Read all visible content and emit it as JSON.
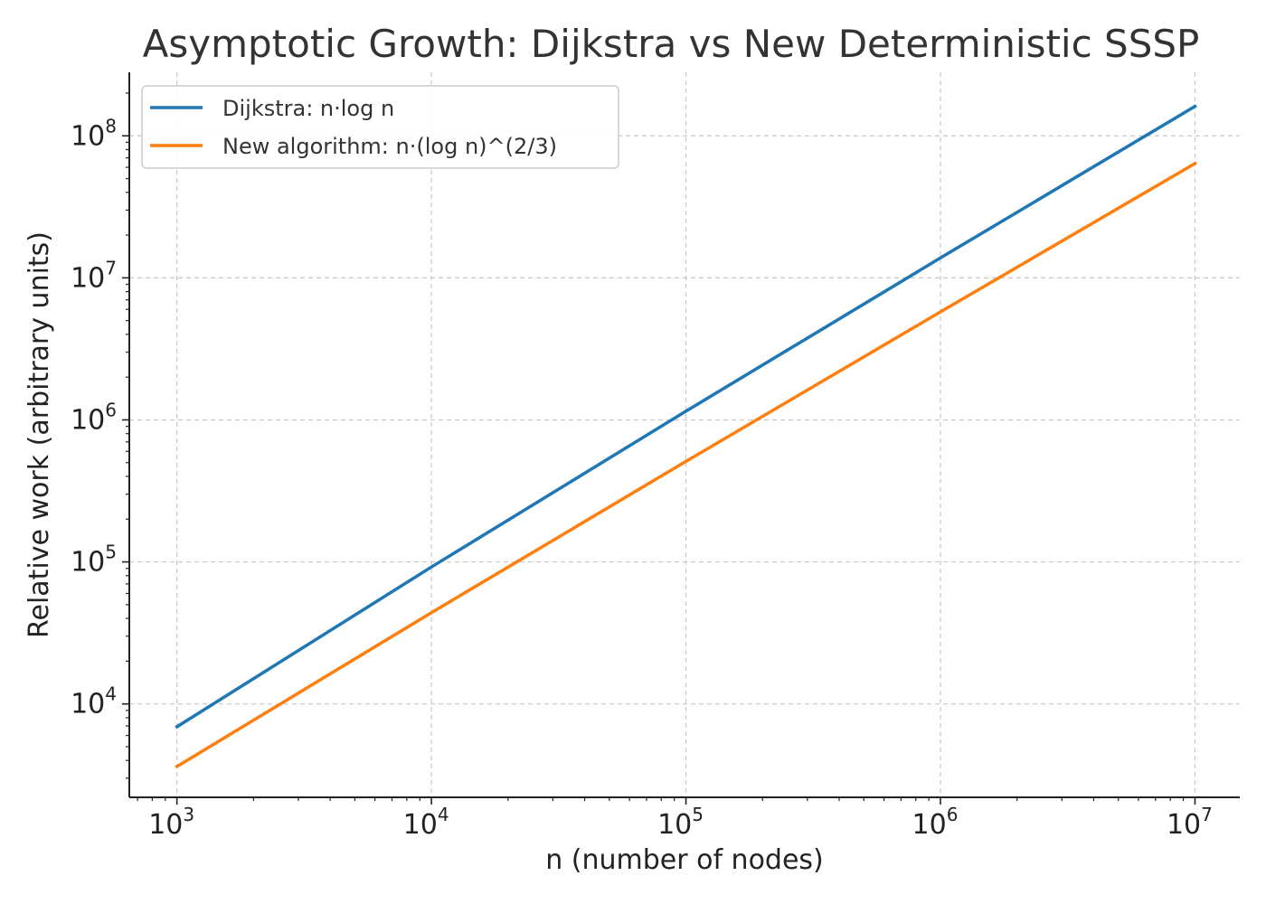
{
  "chart_data": {
    "type": "line",
    "title": "Asymptotic Growth: Dijkstra vs New Deterministic SSSP",
    "xlabel": "n (number of nodes)",
    "ylabel": "Relative work (arbitrary units)",
    "xscale": "log",
    "yscale": "log",
    "xlim": [
      650,
      15000000
    ],
    "ylim": [
      2200,
      280000000
    ],
    "grid": true,
    "legend_position": "upper-left",
    "x_ticks": [
      {
        "base": "10",
        "exp": "3",
        "value": 1000
      },
      {
        "base": "10",
        "exp": "4",
        "value": 10000
      },
      {
        "base": "10",
        "exp": "5",
        "value": 100000
      },
      {
        "base": "10",
        "exp": "6",
        "value": 1000000
      },
      {
        "base": "10",
        "exp": "7",
        "value": 10000000
      }
    ],
    "y_ticks": [
      {
        "base": "10",
        "exp": "4",
        "value": 10000
      },
      {
        "base": "10",
        "exp": "5",
        "value": 100000
      },
      {
        "base": "10",
        "exp": "6",
        "value": 1000000
      },
      {
        "base": "10",
        "exp": "7",
        "value": 10000000
      },
      {
        "base": "10",
        "exp": "8",
        "value": 100000000
      }
    ],
    "x": [
      1000,
      10000,
      100000,
      1000000,
      10000000
    ],
    "series": [
      {
        "name": "Dijkstra: n·log n",
        "color": "#1f77b4",
        "values": [
          6908,
          92103,
          1151293,
          13815511,
          161180957
        ]
      },
      {
        "name": "New algorithm: n·(log n)^(2/3)",
        "color": "#ff7f0e",
        "values": [
          3627,
          43945,
          509846,
          5757000,
          63846000
        ]
      }
    ]
  }
}
